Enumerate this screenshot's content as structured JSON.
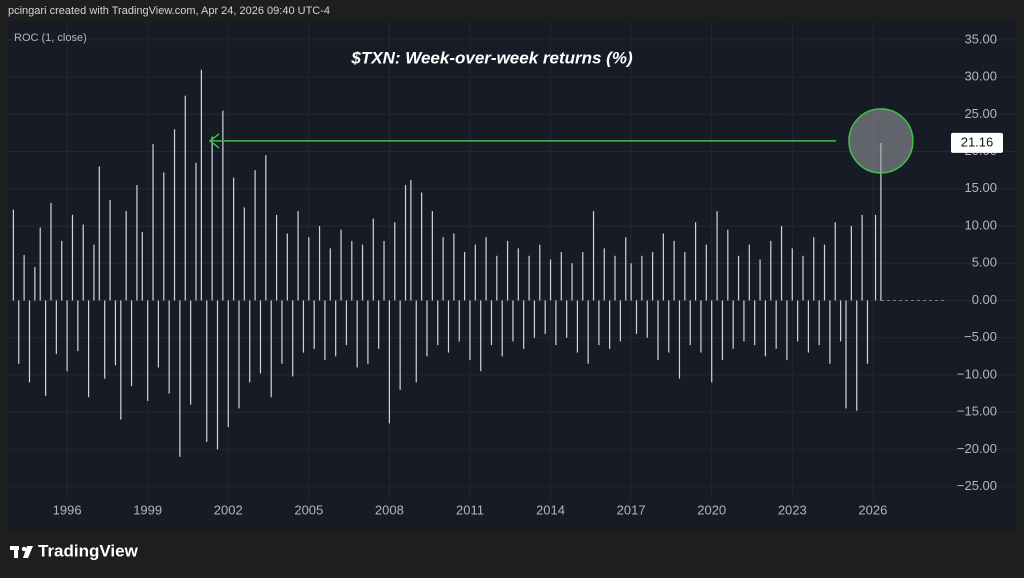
{
  "header": "pcingari created with TradingView.com, Apr 24, 2026 09:40 UTC-4",
  "brand": "TradingView",
  "chart_data": {
    "type": "bar",
    "title": "$TXN: Week-over-week returns (%)",
    "indicator": "ROC (1, close)",
    "color": "#d1d4dc",
    "grid": true,
    "annotation_color": "#3fbf4a",
    "xlim": [
      1993.8,
      2028.5
    ],
    "xticks": [
      1996,
      1999,
      2002,
      2005,
      2008,
      2011,
      2014,
      2017,
      2020,
      2023,
      2026
    ],
    "ylim": [
      -26.8,
      37.4
    ],
    "yticks": [
      {
        "value": 35,
        "label": "35.00"
      },
      {
        "value": 30,
        "label": "30.00"
      },
      {
        "value": 25,
        "label": "25.00"
      },
      {
        "value": 20,
        "label": "20.00"
      },
      {
        "value": 15,
        "label": "15.00"
      },
      {
        "value": 10,
        "label": "10.00"
      },
      {
        "value": 5,
        "label": "5.00"
      },
      {
        "value": 0,
        "label": "0.00"
      },
      {
        "value": -5,
        "label": "−5.00"
      },
      {
        "value": -10,
        "label": "−10.00"
      },
      {
        "value": -15,
        "label": "−15.00"
      },
      {
        "value": -20,
        "label": "−20.00"
      },
      {
        "value": -25,
        "label": "−25.00"
      }
    ],
    "x": [
      1994.0,
      1994.2,
      1994.4,
      1994.6,
      1994.8,
      1995.0,
      1995.2,
      1995.4,
      1995.6,
      1995.8,
      1996.0,
      1996.2,
      1996.4,
      1996.6,
      1996.8,
      1997.0,
      1997.2,
      1997.4,
      1997.6,
      1997.8,
      1998.0,
      1998.2,
      1998.4,
      1998.6,
      1998.8,
      1999.0,
      1999.2,
      1999.4,
      1999.6,
      1999.8,
      2000.0,
      2000.2,
      2000.4,
      2000.6,
      2000.8,
      2001.0,
      2001.2,
      2001.4,
      2001.6,
      2001.8,
      2002.0,
      2002.2,
      2002.4,
      2002.6,
      2002.8,
      2003.0,
      2003.2,
      2003.4,
      2003.6,
      2003.8,
      2004.0,
      2004.2,
      2004.4,
      2004.6,
      2004.8,
      2005.0,
      2005.2,
      2005.4,
      2005.6,
      2005.8,
      2006.0,
      2006.2,
      2006.4,
      2006.6,
      2006.8,
      2007.0,
      2007.2,
      2007.4,
      2007.6,
      2007.8,
      2008.0,
      2008.2,
      2008.4,
      2008.6,
      2008.8,
      2009.0,
      2009.2,
      2009.4,
      2009.6,
      2009.8,
      2010.0,
      2010.2,
      2010.4,
      2010.6,
      2010.8,
      2011.0,
      2011.2,
      2011.4,
      2011.6,
      2011.8,
      2012.0,
      2012.2,
      2012.4,
      2012.6,
      2012.8,
      2013.0,
      2013.2,
      2013.4,
      2013.6,
      2013.8,
      2014.0,
      2014.2,
      2014.4,
      2014.6,
      2014.8,
      2015.0,
      2015.2,
      2015.4,
      2015.6,
      2015.8,
      2016.0,
      2016.2,
      2016.4,
      2016.6,
      2016.8,
      2017.0,
      2017.2,
      2017.4,
      2017.6,
      2017.8,
      2018.0,
      2018.2,
      2018.4,
      2018.6,
      2018.8,
      2019.0,
      2019.2,
      2019.4,
      2019.6,
      2019.8,
      2020.0,
      2020.2,
      2020.4,
      2020.6,
      2020.8,
      2021.0,
      2021.2,
      2021.4,
      2021.6,
      2021.8,
      2022.0,
      2022.2,
      2022.4,
      2022.6,
      2022.8,
      2023.0,
      2023.2,
      2023.4,
      2023.6,
      2023.8,
      2024.0,
      2024.2,
      2024.4,
      2024.6,
      2024.8,
      2025.0,
      2025.2,
      2025.4,
      2025.6,
      2025.8,
      2026.1,
      2026.3
    ],
    "values": [
      12.2,
      -8.5,
      6.1,
      -11.0,
      4.5,
      9.8,
      -12.8,
      13.1,
      -7.2,
      8.0,
      -9.5,
      11.5,
      -6.8,
      10.2,
      -13.0,
      7.5,
      18.0,
      -10.5,
      13.5,
      -8.7,
      -16.0,
      12.0,
      -11.5,
      15.5,
      9.2,
      -13.5,
      21.0,
      -9.0,
      17.2,
      -12.5,
      23.0,
      -21.0,
      27.5,
      -14.0,
      18.5,
      31.0,
      -19.0,
      22.0,
      -20.0,
      25.5,
      -17.0,
      16.5,
      -14.5,
      12.5,
      -11.0,
      17.5,
      -9.8,
      19.5,
      -13.0,
      11.5,
      -8.5,
      9.0,
      -10.2,
      12.0,
      -7.0,
      8.5,
      -6.5,
      10.0,
      -8.0,
      7.0,
      -7.5,
      9.5,
      -6.0,
      8.0,
      -9.0,
      7.5,
      -8.5,
      11.0,
      -6.5,
      8.0,
      -16.5,
      10.5,
      -12.0,
      15.5,
      16.2,
      -11.0,
      14.5,
      -7.5,
      12.0,
      -6.0,
      8.5,
      -7.0,
      9.0,
      -5.5,
      6.5,
      -8.0,
      7.5,
      -9.5,
      8.5,
      -6.0,
      6.0,
      -7.5,
      8.0,
      -5.5,
      7.0,
      -6.5,
      6.0,
      -5.0,
      7.5,
      -4.5,
      5.5,
      -6.0,
      6.5,
      -5.0,
      5.0,
      -7.0,
      6.5,
      -8.5,
      12.0,
      -6.0,
      7.0,
      -6.5,
      6.0,
      -5.5,
      8.5,
      5.0,
      -4.5,
      6.0,
      -5.0,
      6.5,
      -8.0,
      9.0,
      -7.0,
      8.0,
      -10.5,
      6.5,
      -6.0,
      10.5,
      -7.0,
      7.5,
      -11.0,
      12.0,
      -8.0,
      9.5,
      -6.5,
      6.0,
      -5.5,
      7.5,
      -6.0,
      5.5,
      -7.5,
      8.0,
      -6.5,
      10.0,
      -8.0,
      7.0,
      -5.5,
      6.0,
      -7.0,
      8.5,
      -6.0,
      7.5,
      -8.5,
      10.5,
      -5.5,
      -14.5,
      10.0,
      -14.8,
      11.5,
      -8.5,
      11.5,
      21.16
    ]
  }
}
